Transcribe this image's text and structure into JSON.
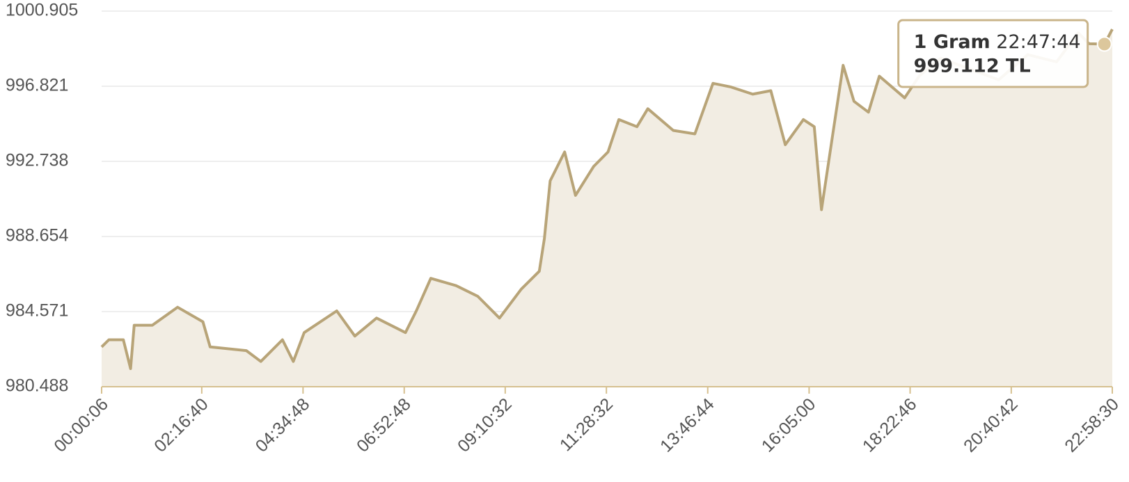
{
  "chart_data": {
    "type": "area",
    "x": [
      "00:00:06",
      "00:09:58",
      "00:29:42",
      "00:39:34",
      "00:44:30",
      "01:09:10",
      "01:43:42",
      "02:18:14",
      "02:28:06",
      "03:17:26",
      "03:37:10",
      "04:06:46",
      "04:21:34",
      "04:36:22",
      "05:20:46",
      "05:45:26",
      "06:15:02",
      "06:54:30",
      "07:09:18",
      "07:29:02",
      "08:03:34",
      "08:33:10",
      "09:02:46",
      "09:32:22",
      "09:57:02",
      "10:03:56",
      "10:11:50",
      "10:31:34",
      "10:46:22",
      "11:11:02",
      "11:30:46",
      "11:45:34",
      "12:10:14",
      "12:25:02",
      "12:59:38",
      "13:29:14",
      "13:53:50",
      "14:18:30",
      "14:48:06",
      "15:12:46",
      "15:32:30",
      "15:57:10",
      "16:11:58",
      "16:21:50",
      "16:36:38",
      "16:51:26",
      "17:06:14",
      "17:25:58",
      "17:40:46",
      "18:15:18",
      "18:35:02",
      "19:04:38",
      "19:44:06",
      "20:23:34",
      "21:03:02",
      "21:42:30",
      "22:12:06",
      "22:26:54",
      "22:47:44",
      "22:58:30"
    ],
    "series": [
      {
        "name": "1 Gram",
        "color": "#b8a478",
        "fill_color": "#f2ede3",
        "values": [
          982.65,
          983.04,
          983.04,
          981.47,
          983.83,
          983.83,
          984.81,
          984.02,
          982.65,
          982.45,
          981.86,
          983.04,
          981.86,
          983.43,
          984.61,
          983.24,
          984.22,
          983.43,
          984.61,
          986.38,
          985.98,
          985.4,
          984.22,
          985.79,
          986.77,
          988.54,
          991.68,
          993.25,
          990.89,
          992.46,
          993.25,
          995.01,
          994.62,
          995.6,
          994.42,
          994.23,
          996.98,
          996.78,
          996.39,
          996.58,
          993.64,
          995.01,
          994.62,
          990.11,
          994.03,
          997.96,
          996.0,
          995.41,
          997.37,
          996.19,
          997.37,
          998.35,
          997.76,
          997.17,
          998.54,
          998.15,
          999.72,
          999.13,
          999.112,
          999.92
        ]
      }
    ],
    "xlim": [
      "00:00:06",
      "22:58:30"
    ],
    "xticks": [
      "00:00:06",
      "02:16:40",
      "04:34:48",
      "06:52:48",
      "09:10:32",
      "11:28:32",
      "13:46:44",
      "16:05:00",
      "18:22:46",
      "20:40:42",
      "22:58:30"
    ],
    "ylim": [
      980.488,
      1000.905
    ],
    "yticks": [
      980.488,
      984.571,
      988.654,
      992.738,
      996.821,
      1000.905
    ],
    "grid": true,
    "axis_color": "#d6c08f",
    "tooltip": {
      "x": "22:47:44",
      "value": 999.112,
      "value_label": "999.112 TL"
    }
  }
}
